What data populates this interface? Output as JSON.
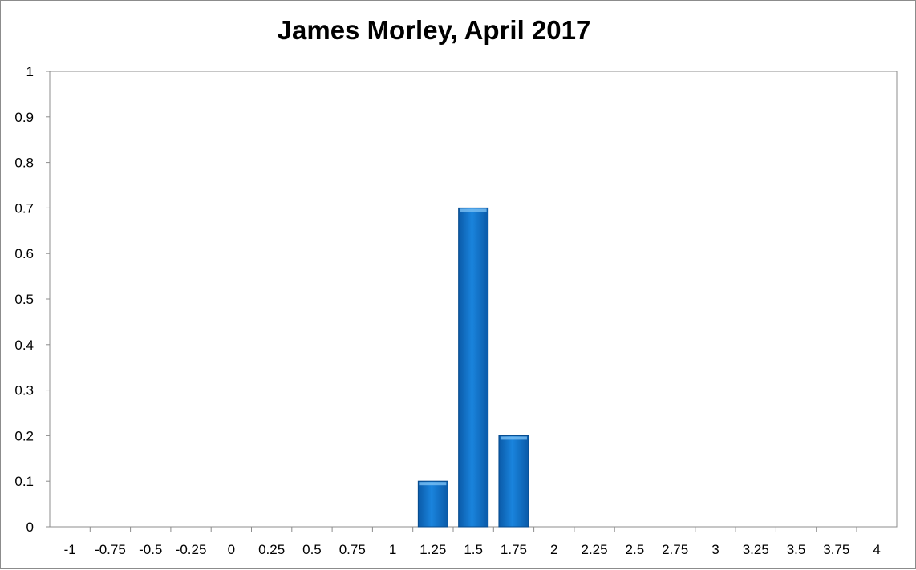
{
  "chart_data": {
    "type": "bar",
    "title": "James Morley, April 2017",
    "xlabel": "",
    "ylabel": "",
    "categories": [
      "-1",
      "-0.75",
      "-0.5",
      "-0.25",
      "0",
      "0.25",
      "0.5",
      "0.75",
      "1",
      "1.25",
      "1.5",
      "1.75",
      "2",
      "2.25",
      "2.5",
      "2.75",
      "3",
      "3.25",
      "3.5",
      "3.75",
      "4"
    ],
    "values": [
      0,
      0,
      0,
      0,
      0,
      0,
      0,
      0,
      0,
      0.1,
      0.7,
      0.2,
      0,
      0,
      0,
      0,
      0,
      0,
      0,
      0,
      0
    ],
    "ylim": [
      0,
      1
    ],
    "yticks": [
      "0",
      "0.1",
      "0.2",
      "0.3",
      "0.4",
      "0.5",
      "0.6",
      "0.7",
      "0.8",
      "0.9",
      "1"
    ],
    "grid": false,
    "legend": "none",
    "bar_color": "#0a6fc8"
  }
}
